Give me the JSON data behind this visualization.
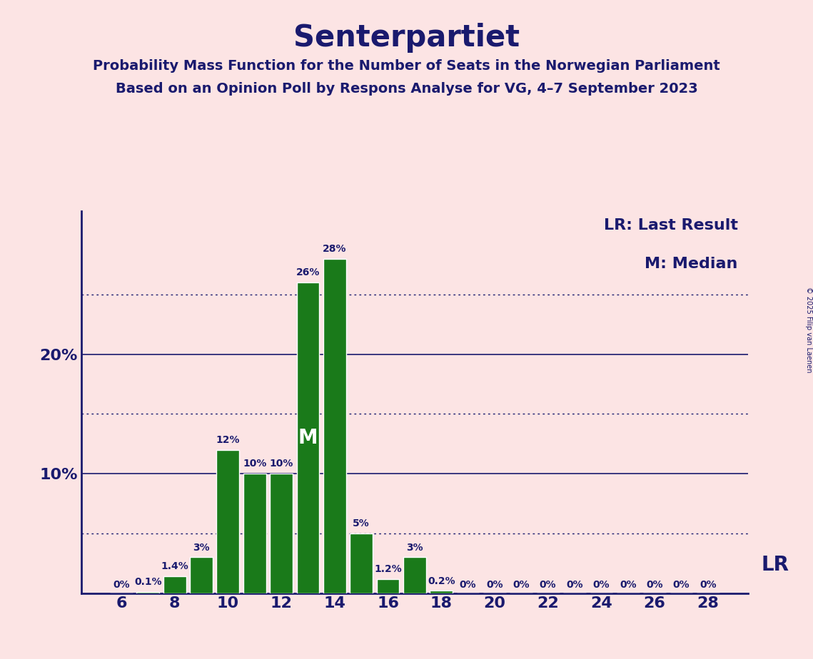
{
  "title": "Senterpartiet",
  "subtitle1": "Probability Mass Function for the Number of Seats in the Norwegian Parliament",
  "subtitle2": "Based on an Opinion Poll by Respons Analyse for VG, 4–7 September 2023",
  "copyright": "© 2025 Filip van Laenen",
  "background_color": "#fce4e4",
  "bar_color": "#1a7a1a",
  "title_color": "#1a1a6e",
  "text_color": "#1a1a6e",
  "seats": [
    6,
    7,
    8,
    9,
    10,
    11,
    12,
    13,
    14,
    15,
    16,
    17,
    18,
    19,
    20,
    21,
    22,
    23,
    24,
    25,
    26,
    27,
    28
  ],
  "probabilities": [
    0.0,
    0.1,
    1.4,
    3.0,
    12.0,
    10.0,
    10.0,
    26.0,
    28.0,
    5.0,
    1.2,
    3.0,
    0.2,
    0.0,
    0.0,
    0.0,
    0.0,
    0.0,
    0.0,
    0.0,
    0.0,
    0.0,
    0.0
  ],
  "labels": [
    "0%",
    "0.1%",
    "1.4%",
    "3%",
    "12%",
    "10%",
    "10%",
    "26%",
    "28%",
    "5%",
    "1.2%",
    "3%",
    "0.2%",
    "0%",
    "0%",
    "0%",
    "0%",
    "0%",
    "0%",
    "0%",
    "0%",
    "0%",
    "0%"
  ],
  "xticks": [
    6,
    8,
    10,
    12,
    14,
    16,
    18,
    20,
    22,
    24,
    26,
    28
  ],
  "ytick_values": [
    10,
    20
  ],
  "ytick_labels": [
    "10%",
    "20%"
  ],
  "ylim": [
    0,
    32
  ],
  "median_seat": 13,
  "lr_seat": 17,
  "lr_label": "LR",
  "lr_legend": "LR: Last Result",
  "median_legend": "M: Median",
  "median_label": "M",
  "grid_color": "#1a1a6e",
  "axis_color": "#1a1a6e",
  "solid_grid_levels": [
    10,
    20
  ],
  "dotted_grid_levels": [
    5,
    15,
    25
  ],
  "bar_width": 0.85,
  "title_fontsize": 30,
  "subtitle_fontsize": 14,
  "tick_fontsize": 16,
  "label_fontsize": 10,
  "legend_fontsize": 16,
  "lr_text_fontsize": 20,
  "median_label_fontsize": 20,
  "copyright_fontsize": 7
}
